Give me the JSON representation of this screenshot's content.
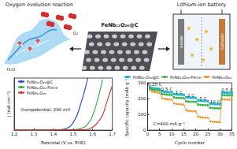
{
  "texts": {
    "oer": "Oxygen evolution reaction",
    "o2": "O₂",
    "h2o": "H₂O",
    "material": "FeNb₁₁O₂₉@C",
    "battery": "Lithium-ion battery",
    "anode": "Anode",
    "cathode": "Cathode"
  },
  "chart_data": [
    {
      "type": "line",
      "x_label": "Potential (V vs. RHE)",
      "y_label": "j (mA cm⁻²)",
      "xlim": [
        1.2,
        1.7
      ],
      "xticks": [
        1.2,
        1.3,
        1.4,
        1.5,
        1.6,
        1.7
      ],
      "ylim": [
        0,
        35
      ],
      "tick_labels": "x",
      "grid": false,
      "legend": "top-left",
      "annotations": [
        {
          "text": "Overpotential: 290 mV",
          "x": 1.36,
          "y": 14
        }
      ],
      "series": [
        {
          "name": "FeNb₁₁O₂₉@C",
          "color": "#1f3fd6",
          "line_style": "solid",
          "x": [
            1.2,
            1.4,
            1.45,
            1.48,
            1.5,
            1.52,
            1.54,
            1.56,
            1.575
          ],
          "values": [
            0,
            0.2,
            0.6,
            2,
            5,
            10,
            18,
            27,
            35
          ]
        },
        {
          "name": "FeNb₁₁O₂₉-Piece",
          "color": "#2fa83a",
          "line_style": "solid",
          "x": [
            1.2,
            1.5,
            1.55,
            1.58,
            1.6,
            1.62,
            1.64,
            1.65
          ],
          "values": [
            0,
            0.3,
            1.5,
            5,
            10,
            18,
            28,
            34
          ]
        },
        {
          "name": "FeNb₁₁O₂₉",
          "color": "#e0282a",
          "line_style": "solid",
          "x": [
            1.2,
            1.55,
            1.6,
            1.63,
            1.65,
            1.67,
            1.69,
            1.7
          ],
          "values": [
            0,
            0.3,
            2,
            6,
            10,
            18,
            26,
            30
          ]
        }
      ]
    },
    {
      "type": "line",
      "x_label": "Cycle number",
      "y_label": "Specific capacity (mAh g⁻¹)",
      "xlim": [
        0,
        35
      ],
      "xticks": [
        0,
        5,
        10,
        15,
        20,
        25,
        30,
        35
      ],
      "ylim": [
        0,
        300
      ],
      "yticks": [
        0,
        100,
        200,
        300
      ],
      "grid": false,
      "legend": "top",
      "annotations": [
        {
          "text": "0.25 C",
          "x": 3,
          "y": 288
        },
        {
          "text": "0.5 C",
          "x": 8,
          "y": 258
        },
        {
          "text": "1 C",
          "x": 13,
          "y": 240
        },
        {
          "text": "2 C",
          "x": 18,
          "y": 222
        },
        {
          "text": "5 C",
          "x": 23,
          "y": 202
        },
        {
          "text": "10 C",
          "x": 28,
          "y": 182
        },
        {
          "text": "0.5 C",
          "x": 33,
          "y": 255
        },
        {
          "text": "C=400 mA g⁻¹",
          "x": 9,
          "y": 40
        }
      ],
      "x": [
        1,
        2,
        3,
        4,
        5,
        6,
        7,
        8,
        9,
        10,
        11,
        12,
        13,
        14,
        15,
        16,
        17,
        18,
        19,
        20,
        21,
        22,
        23,
        24,
        25,
        26,
        27,
        28,
        29,
        30,
        31,
        32,
        33,
        34,
        35
      ],
      "series": [
        {
          "name": "FeNb₁₁O₂₉@C",
          "color": "#1fb5c9",
          "marker": "square",
          "values": [
            272,
            266,
            264,
            263,
            262,
            245,
            242,
            241,
            240,
            240,
            228,
            226,
            225,
            225,
            224,
            208,
            206,
            205,
            205,
            204,
            188,
            186,
            185,
            185,
            184,
            168,
            166,
            165,
            165,
            164,
            238,
            237,
            236,
            236,
            235
          ]
        },
        {
          "name": "FeNb₁₁O₂₉-Piece",
          "color": "#3cb043",
          "marker": "circle",
          "values": [
            262,
            255,
            253,
            252,
            251,
            228,
            226,
            225,
            224,
            224,
            207,
            205,
            204,
            204,
            203,
            183,
            181,
            180,
            180,
            179,
            162,
            160,
            159,
            159,
            158,
            142,
            140,
            139,
            139,
            138,
            222,
            221,
            220,
            220,
            219
          ]
        },
        {
          "name": "FeNb₁₁O₂₉",
          "color": "#f08a1c",
          "marker": "triangle",
          "values": [
            255,
            245,
            242,
            240,
            238,
            205,
            200,
            198,
            196,
            195,
            172,
            168,
            166,
            165,
            164,
            128,
            124,
            122,
            121,
            120,
            88,
            84,
            82,
            81,
            80,
            58,
            55,
            54,
            53,
            53,
            198,
            196,
            195,
            195,
            194
          ]
        }
      ]
    }
  ]
}
